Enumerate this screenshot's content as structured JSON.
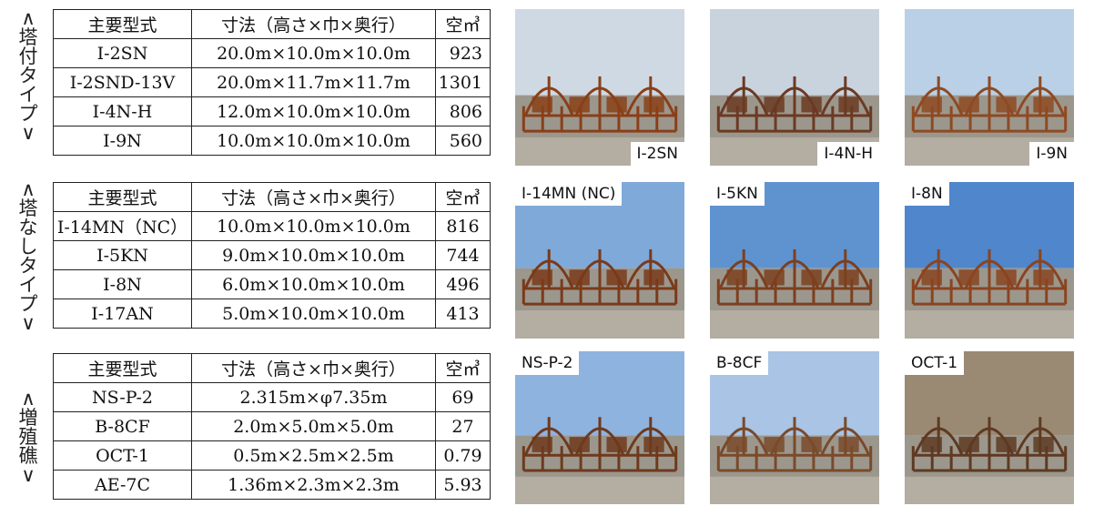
{
  "sections": [
    {
      "side_label": [
        "∧",
        "塔",
        "付",
        "タ",
        "イ",
        "プ",
        "∨"
      ],
      "header": {
        "model": "主要型式",
        "dims": "寸法（高さ×巾×奥行）",
        "volume": "空㎥"
      },
      "rows": [
        {
          "model": "I-2SN",
          "dims": "20.0m×10.0m×10.0m",
          "volume": "923"
        },
        {
          "model": "I-2SND-13V",
          "dims": "20.0m×11.7m×11.7m",
          "volume": "1301"
        },
        {
          "model": "I-4N-H",
          "dims": "12.0m×10.0m×10.0m",
          "volume": "806"
        },
        {
          "model": "I-9N",
          "dims": "10.0m×10.0m×10.0m",
          "volume": "560"
        }
      ],
      "photos": [
        {
          "label": "I-2SN",
          "sky": "#cfd9e4",
          "structure": "#8a3f18"
        },
        {
          "label": "I-4N-H",
          "sky": "#c9d3de",
          "structure": "#6b3a22"
        },
        {
          "label": "I-9N",
          "sky": "#b9d0e6",
          "structure": "#8e4a22"
        }
      ]
    },
    {
      "side_label": [
        "∧",
        "塔",
        "な",
        "し",
        "タ",
        "イ",
        "プ",
        "∨"
      ],
      "header": {
        "model": "主要型式",
        "dims": "寸法（高さ×巾×奥行）",
        "volume": "空㎥"
      },
      "rows": [
        {
          "model": "I-14MN（NC）",
          "dims": "10.0m×10.0m×10.0m",
          "volume": "816"
        },
        {
          "model": "I-5KN",
          "dims": "9.0m×10.0m×10.0m",
          "volume": "744"
        },
        {
          "model": "I-8N",
          "dims": "6.0m×10.0m×10.0m",
          "volume": "496"
        },
        {
          "model": "I-17AN",
          "dims": "5.0m×10.0m×10.0m",
          "volume": "413"
        }
      ],
      "photos": [
        {
          "label": "I-14MN (NC)",
          "sky": "#7fa9d8",
          "structure": "#7a3a1a"
        },
        {
          "label": "I-5KN",
          "sky": "#5f93d0",
          "structure": "#7d3f1f"
        },
        {
          "label": "I-8N",
          "sky": "#4f86cc",
          "structure": "#8a4420"
        }
      ]
    },
    {
      "side_label": [
        "∧",
        "増",
        "殖",
        "礁",
        "∨"
      ],
      "header": {
        "model": "主要型式",
        "dims": "寸法（高さ×巾×奥行）",
        "volume": "空㎥"
      },
      "rows": [
        {
          "model": "NS-P-2",
          "dims": "2.315m×φ7.35m",
          "volume": "69"
        },
        {
          "model": "B-8CF",
          "dims": "2.0m×5.0m×5.0m",
          "volume": "27"
        },
        {
          "model": "OCT-1",
          "dims": "0.5m×2.5m×2.5m",
          "volume": "0.79"
        },
        {
          "model": "AE-7C",
          "dims": "1.36m×2.3m×2.3m",
          "volume": "5.93"
        }
      ],
      "photos": [
        {
          "label": "NS-P-2",
          "sky": "#8fb3df",
          "structure": "#6e3a1d"
        },
        {
          "label": "B-8CF",
          "sky": "#a9c4e4",
          "structure": "#7a4a2a"
        },
        {
          "label": "OCT-1",
          "sky": "#9a8a74",
          "structure": "#5e3a22"
        }
      ]
    }
  ]
}
